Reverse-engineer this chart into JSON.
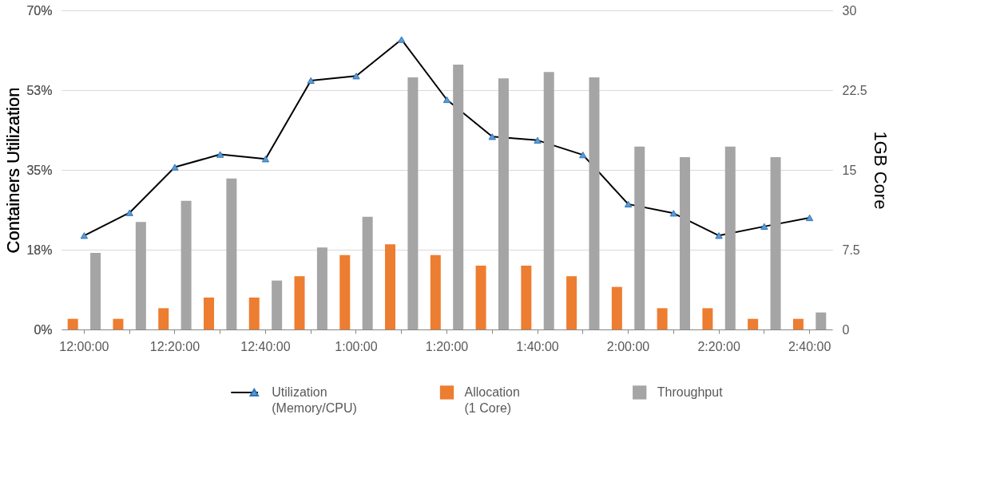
{
  "chart_data": {
    "type": "bar",
    "categories": [
      "12:00:00",
      null,
      "12:20:00",
      null,
      "12:40:00",
      null,
      "1:00:00",
      null,
      "1:20:00",
      null,
      "1:40:00",
      null,
      "2:00:00",
      null,
      "2:20:00",
      null,
      "2:40:00"
    ],
    "ylabel": "Containers Utilization",
    "y2label": "1GB Core",
    "ylim": [
      0,
      70
    ],
    "yticks": [
      {
        "value": 0,
        "label": "0%"
      },
      {
        "value": 17.5,
        "label": "18%"
      },
      {
        "value": 35,
        "label": "35%"
      },
      {
        "value": 52.5,
        "label": "53%"
      },
      {
        "value": 70,
        "label": "70%"
      }
    ],
    "y2lim": [
      0,
      30
    ],
    "y2ticks": [
      0,
      7.5,
      15,
      22.5,
      30
    ],
    "grid": "y",
    "legend": "bottom",
    "marker": "triangle",
    "series": [
      {
        "name": "Utilization (Memory/CPU)",
        "type": "line",
        "color": "#5b9bd5",
        "values": [
          20.6,
          25.6,
          35.6,
          38.4,
          37.4,
          54.6,
          55.6,
          63.6,
          50.4,
          42.3,
          41.5,
          38.3,
          27.5,
          25.5,
          20.6,
          22.6,
          24.5
        ]
      },
      {
        "name": "Allocation (1 Core)",
        "axis": "y2",
        "color": "#ed7d31",
        "values": [
          1,
          1,
          2,
          3,
          3,
          5,
          7,
          8,
          7,
          6,
          6,
          5,
          4,
          2,
          2,
          1,
          1
        ]
      },
      {
        "name": "Throughput",
        "axis": "y2",
        "color": "#a5a5a5",
        "values": [
          7.2,
          10.1,
          12.1,
          14.2,
          4.6,
          7.7,
          10.6,
          23.7,
          24.9,
          23.6,
          24.2,
          23.7,
          17.2,
          16.2,
          17.2,
          16.2,
          1.6
        ]
      }
    ]
  }
}
